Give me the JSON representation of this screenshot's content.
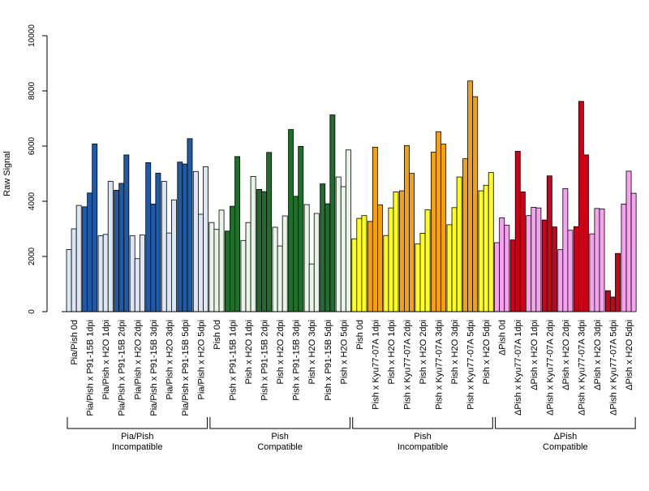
{
  "chart_data": {
    "type": "bar",
    "title": "",
    "xlabel": "",
    "ylabel": "Raw Signal",
    "ylim": [
      0,
      10000
    ],
    "y_ticks": [
      0,
      2000,
      4000,
      6000,
      8000,
      10000
    ],
    "grid": false,
    "legend": "none",
    "bars_per_category": 3,
    "categories": [
      {
        "label": "Pia/Pish 0d",
        "color": "#dce6f4",
        "values": [
          2250,
          3000,
          3850
        ]
      },
      {
        "label": "Pia/Pish x P91-15B 1dpi",
        "color": "#1f5aa6",
        "values": [
          3800,
          4300,
          6080
        ]
      },
      {
        "label": "Pia/Pish x H2O 1dpi",
        "color": "#dce6f4",
        "values": [
          2750,
          2800,
          4720
        ]
      },
      {
        "label": "Pia/Pish x P91-15B 2dpi",
        "color": "#1f5aa6",
        "values": [
          4400,
          4650,
          5680
        ]
      },
      {
        "label": "Pia/Pish x H2O 2dpi",
        "color": "#dce6f4",
        "values": [
          2750,
          1920,
          2780
        ]
      },
      {
        "label": "Pia/Pish x P91-15B 3dpi",
        "color": "#1f5aa6",
        "values": [
          5400,
          3900,
          5020
        ]
      },
      {
        "label": "Pia/Pish x H2O 3dpi",
        "color": "#dce6f4",
        "values": [
          4720,
          2850,
          4050
        ]
      },
      {
        "label": "Pia/Pish x P91-15B 5dpi",
        "color": "#1f5aa6",
        "values": [
          5420,
          5350,
          6270
        ]
      },
      {
        "label": "Pia/Pish x H2O 5dpi",
        "color": "#dce6f4",
        "values": [
          5080,
          3530,
          5250
        ]
      },
      {
        "label": "Pish 0d",
        "color": "#e8f4e6",
        "values": [
          3230,
          2980,
          3680
        ]
      },
      {
        "label": "Pish x P91-15B 1dpi",
        "color": "#1e6e2c",
        "values": [
          2920,
          3820,
          5620
        ]
      },
      {
        "label": "Pish x H2O 1dpi",
        "color": "#e8f4e6",
        "values": [
          2580,
          3230,
          4900
        ]
      },
      {
        "label": "Pish x P91-15B 2dpi",
        "color": "#1e6e2c",
        "values": [
          4430,
          4350,
          5770
        ]
      },
      {
        "label": "Pish x H2O 2dpi",
        "color": "#e8f4e6",
        "values": [
          3060,
          2380,
          3470
        ]
      },
      {
        "label": "Pish x P91-15B 3dpi",
        "color": "#1e6e2c",
        "values": [
          6600,
          4180,
          5990
        ]
      },
      {
        "label": "Pish x H2O 3dpi",
        "color": "#e8f4e6",
        "values": [
          3880,
          1730,
          3560
        ]
      },
      {
        "label": "Pish x P91-15B 5dpi",
        "color": "#1e6e2c",
        "values": [
          4630,
          3910,
          7130
        ]
      },
      {
        "label": "Pish x H2O 5dpi",
        "color": "#e8f4e6",
        "values": [
          4880,
          4530,
          5860
        ]
      },
      {
        "label": "Pish 0d",
        "color": "#ffff1a",
        "values": [
          2640,
          3380,
          3480
        ]
      },
      {
        "label": "Pish x Kyu77-07A 1dpi",
        "color": "#f3a20f",
        "values": [
          3270,
          5960,
          3870
        ]
      },
      {
        "label": "Pish x H2O 1dpi",
        "color": "#ffff1a",
        "values": [
          2760,
          3760,
          4340
        ]
      },
      {
        "label": "Pish x Kyu77-07A 2dpi",
        "color": "#f3a20f",
        "values": [
          4380,
          6020,
          5010
        ]
      },
      {
        "label": "Pish x H2O 2dpi",
        "color": "#ffff1a",
        "values": [
          2460,
          2840,
          3690
        ]
      },
      {
        "label": "Pish x Kyu77-07A 3dpi",
        "color": "#f3a20f",
        "values": [
          5780,
          6520,
          6070
        ]
      },
      {
        "label": "Pish x H2O 3dpi",
        "color": "#ffff1a",
        "values": [
          3150,
          3770,
          4880
        ]
      },
      {
        "label": "Pish x Kyu77-07A 5dpi",
        "color": "#f3a20f",
        "values": [
          5540,
          8360,
          7790
        ]
      },
      {
        "label": "Pish x H2O 5dpi",
        "color": "#ffff1a",
        "values": [
          4380,
          4580,
          5040
        ]
      },
      {
        "label": "ΔPish 0d",
        "color": "#f5a3ee",
        "values": [
          2500,
          3400,
          3130
        ]
      },
      {
        "label": "ΔPish x Kyu77-07A 1dpi",
        "color": "#cc0018",
        "values": [
          2600,
          5810,
          4340
        ]
      },
      {
        "label": "ΔPish x H2O 1dpi",
        "color": "#f5a3ee",
        "values": [
          3480,
          3780,
          3760
        ]
      },
      {
        "label": "ΔPish x Kyu77-07A 2dpi",
        "color": "#cc0018",
        "values": [
          3320,
          4920,
          3070
        ]
      },
      {
        "label": "ΔPish x H2O 2dpi",
        "color": "#f5a3ee",
        "values": [
          2250,
          4460,
          2950
        ]
      },
      {
        "label": "ΔPish x Kyu77-07A 3dpi",
        "color": "#cc0018",
        "values": [
          3080,
          7620,
          5680
        ]
      },
      {
        "label": "ΔPish x H2O 3dpi",
        "color": "#f5a3ee",
        "values": [
          2820,
          3740,
          3720
        ]
      },
      {
        "label": "ΔPish x Kyu77-07A 5dpi",
        "color": "#cc0018",
        "values": [
          760,
          530,
          2110
        ]
      },
      {
        "label": "ΔPish x H2O 5dpi",
        "color": "#f5a3ee",
        "values": [
          3900,
          5090,
          4290
        ]
      }
    ],
    "groups": [
      {
        "line1": "Pia/Pish",
        "line2": "Incompatible",
        "from": 0,
        "to": 8
      },
      {
        "line1": "Pish",
        "line2": "Compatible",
        "from": 9,
        "to": 17
      },
      {
        "line1": "Pish",
        "line2": "Incompatible",
        "from": 18,
        "to": 26
      },
      {
        "line1": "ΔPish",
        "line2": "Compatible",
        "from": 27,
        "to": 35
      }
    ]
  }
}
